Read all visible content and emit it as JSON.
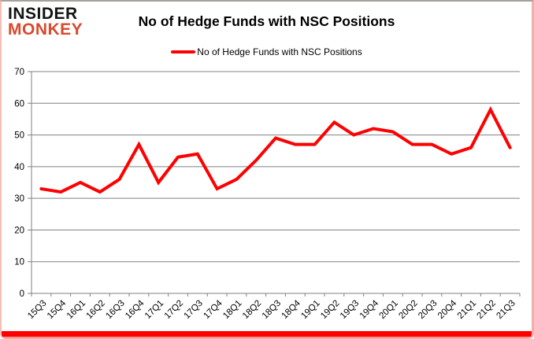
{
  "logo": {
    "line1": "INSIDER",
    "line2": "MONKEY",
    "line1_color": "#141414",
    "line2_color": "#d8492d"
  },
  "title": "No of Hedge Funds with NSC Positions",
  "legend": {
    "label": "No of Hedge Funds with NSC Positions",
    "line_color": "#ff0000"
  },
  "chart_data": {
    "type": "line",
    "title": "No of Hedge Funds with NSC Positions",
    "categories": [
      "15Q3",
      "15Q4",
      "16Q1",
      "16Q2",
      "16Q3",
      "16Q4",
      "17Q1",
      "17Q2",
      "17Q3",
      "17Q4",
      "18Q1",
      "18Q2",
      "18Q3",
      "18Q4",
      "19Q1",
      "19Q2",
      "19Q3",
      "19Q4",
      "20Q1",
      "20Q2",
      "20Q3",
      "20Q4",
      "21Q1",
      "21Q2",
      "21Q3"
    ],
    "values": [
      33,
      32,
      35,
      32,
      36,
      47,
      35,
      43,
      44,
      33,
      36,
      42,
      49,
      47,
      47,
      54,
      50,
      52,
      51,
      47,
      47,
      44,
      46,
      58,
      46
    ],
    "xlabel": "",
    "ylabel": "",
    "ylim": [
      0,
      70
    ],
    "yticks": [
      0,
      10,
      20,
      30,
      40,
      50,
      60,
      70
    ],
    "grid": true,
    "legend_position": "top",
    "line_color": "#ff0000",
    "line_width": 4,
    "grid_color": "#808080",
    "axis_color": "#808080",
    "tick_label_color": "#000000",
    "tick_label_size": 11.5
  },
  "frame": {
    "bottom_bar_color": "#ff0000"
  }
}
